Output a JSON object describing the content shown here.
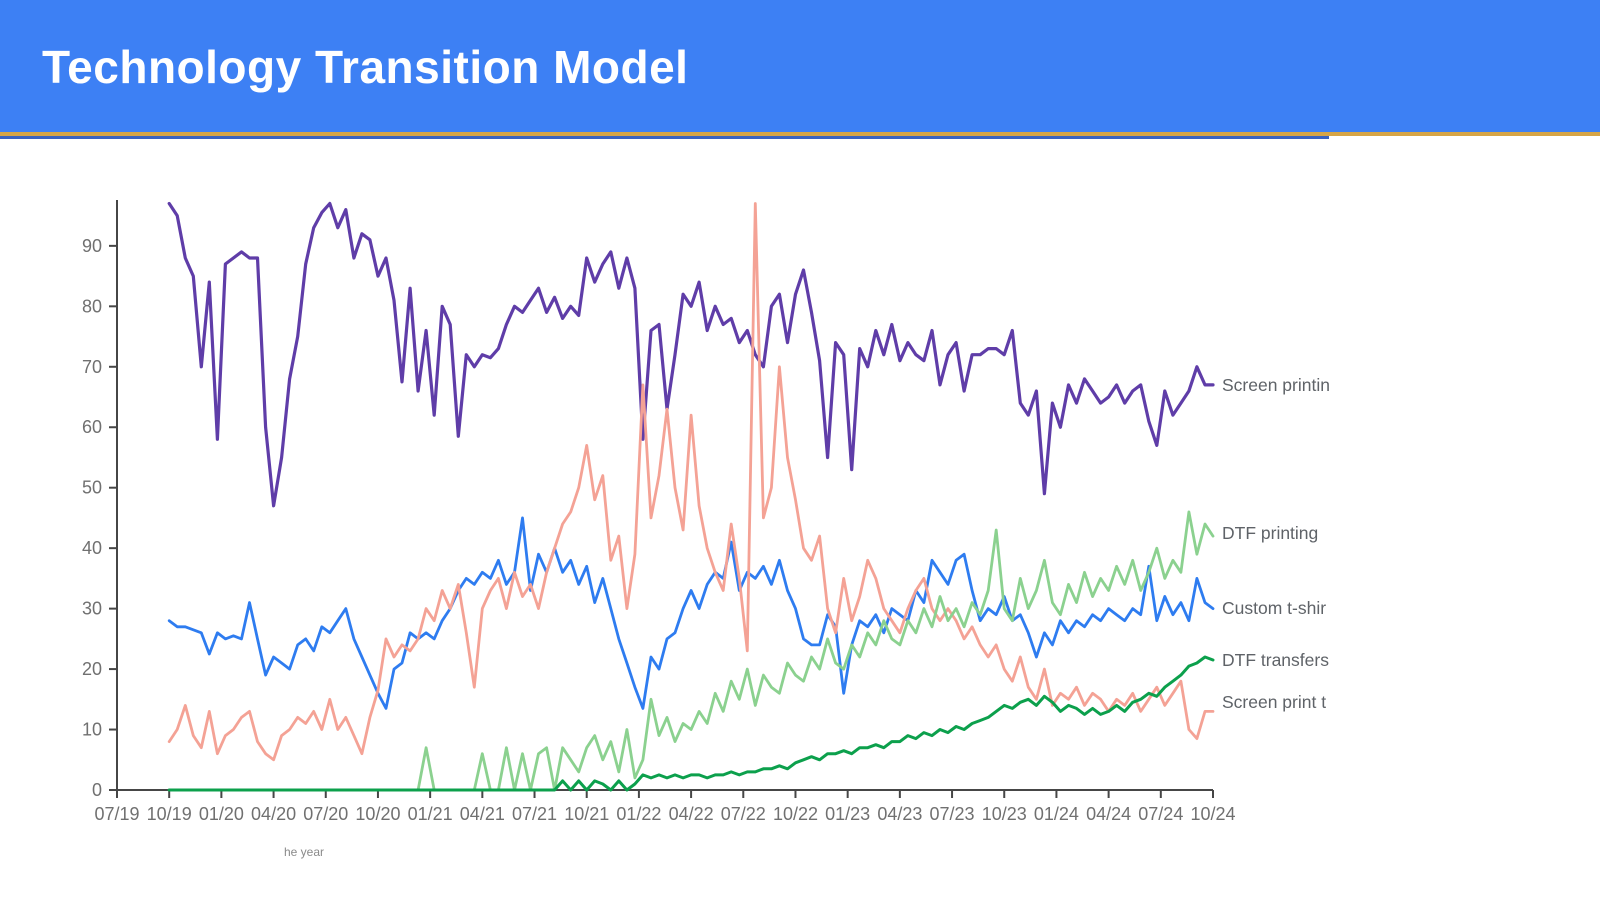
{
  "header": {
    "title": "Technology Transition Model",
    "bar_color": "#3d80f4",
    "gold_rule_color": "#d6a546",
    "navy_rule_color": "#3a63c0"
  },
  "caption_fragment": "he year",
  "chart_data": {
    "type": "line",
    "title": "",
    "xlabel": "",
    "ylabel": "",
    "grid": false,
    "legend_position": "right-of-line-ends",
    "ylim": [
      0,
      100
    ],
    "y_ticks": [
      0,
      10,
      20,
      30,
      40,
      50,
      60,
      70,
      80,
      90
    ],
    "x_tick_labels": [
      "07/19",
      "10/19",
      "01/20",
      "04/20",
      "07/20",
      "10/20",
      "01/21",
      "04/21",
      "07/21",
      "10/21",
      "01/22",
      "04/22",
      "07/22",
      "10/22",
      "01/23",
      "04/23",
      "07/23",
      "10/23",
      "01/24",
      "04/24",
      "07/24",
      "10/24"
    ],
    "data_start_tick": "10/19",
    "data_end_tick": "10/24",
    "axis_color": "#464646",
    "tick_label_color": "#707070",
    "legend_text_color": "#5f6368",
    "series": [
      {
        "name": "Screen printin",
        "color": "#5f3da8",
        "values": [
          97,
          95,
          88,
          85,
          70,
          84,
          58,
          87,
          88,
          89,
          88,
          88,
          60,
          47,
          55,
          68,
          75,
          87,
          93,
          95.5,
          97,
          93,
          96,
          88,
          92,
          91,
          85,
          88,
          81,
          67.5,
          83,
          66,
          76,
          62,
          80,
          77,
          58.5,
          72,
          70,
          72,
          71.5,
          73,
          77,
          80,
          79,
          81,
          83,
          79,
          81.5,
          78,
          80,
          78.5,
          88,
          84,
          87,
          89,
          83,
          88,
          83,
          58,
          76,
          77,
          63,
          72,
          82,
          80,
          84,
          76,
          80,
          77,
          78,
          74,
          76,
          72,
          70,
          80,
          82,
          74,
          82,
          86,
          79,
          71,
          55,
          74,
          72,
          53,
          73,
          70,
          76,
          72,
          77,
          71,
          74,
          72,
          71,
          76,
          67,
          72,
          74,
          66,
          72,
          72,
          73,
          73,
          72,
          76,
          64,
          62,
          66,
          49,
          64,
          60,
          67,
          64,
          68,
          66,
          64,
          65,
          67,
          64,
          66,
          67,
          61,
          57,
          66,
          62,
          64,
          66,
          70,
          67,
          67
        ]
      },
      {
        "name": "Custom t-shir",
        "color": "#2e7cf0",
        "values": [
          28,
          27,
          27,
          26.5,
          26,
          22.5,
          26,
          25,
          25.5,
          25,
          31,
          25,
          19,
          22,
          21,
          20,
          24,
          25,
          23,
          27,
          26,
          28,
          30,
          25,
          22,
          19,
          16,
          13.5,
          20,
          21,
          26,
          25,
          26,
          25,
          28,
          30,
          33,
          35,
          34,
          36,
          35,
          38,
          34,
          36,
          45,
          33,
          39,
          36,
          40,
          36,
          38,
          34,
          37,
          31,
          35,
          30,
          25,
          21,
          17,
          13.5,
          22,
          20,
          25,
          26,
          30,
          33,
          30,
          34,
          36,
          35,
          41,
          33,
          36,
          35,
          37,
          34,
          38,
          33,
          30,
          25,
          24,
          24,
          29,
          27,
          16,
          24,
          28,
          27,
          29,
          26,
          30,
          29,
          28,
          33,
          31,
          38,
          36,
          34,
          38,
          39,
          33,
          28,
          30,
          29,
          32,
          28,
          29,
          26,
          22,
          26,
          24,
          28,
          26,
          28,
          27,
          29,
          28,
          30,
          29,
          28,
          30,
          29,
          37,
          28,
          32,
          29,
          31,
          28,
          35,
          31,
          30
        ]
      },
      {
        "name": "Screen print t",
        "color": "#f4a295",
        "values": [
          8,
          10,
          14,
          9,
          7,
          13,
          6,
          9,
          10,
          12,
          13,
          8,
          6,
          5,
          9,
          10,
          12,
          11,
          13,
          10,
          15,
          10,
          12,
          9,
          6,
          12,
          16.5,
          25,
          22,
          24,
          23,
          25,
          30,
          28,
          33,
          30,
          34,
          26,
          17,
          30,
          33,
          35,
          30,
          36,
          32,
          34,
          30,
          36,
          40,
          44,
          46,
          50,
          57,
          48,
          52,
          38,
          42,
          30,
          39,
          67,
          45,
          52,
          63,
          50,
          43,
          62,
          47,
          40,
          36,
          33,
          44,
          35,
          23,
          97,
          45,
          50,
          70,
          55,
          48,
          40,
          38,
          42,
          30,
          26,
          35,
          28,
          32,
          38,
          35,
          30,
          28,
          26,
          30,
          33,
          35,
          30,
          28,
          30,
          28,
          25,
          27,
          24,
          22,
          24,
          20,
          18,
          22,
          17,
          15,
          20,
          14,
          16,
          15,
          17,
          14,
          16,
          15,
          13,
          15,
          14,
          16,
          13,
          15,
          17,
          14,
          16,
          18,
          10,
          8.5,
          13,
          13
        ]
      },
      {
        "name": "DTF printing",
        "color": "#8bd18f",
        "values": [
          0,
          0,
          0,
          0,
          0,
          0,
          0,
          0,
          0,
          0,
          0,
          0,
          0,
          0,
          0,
          0,
          0,
          0,
          0,
          0,
          0,
          0,
          0,
          0,
          0,
          0,
          0,
          0,
          0,
          0,
          0,
          0,
          7,
          0,
          0,
          0,
          0,
          0,
          0,
          6,
          0,
          0,
          7,
          0,
          6,
          0,
          6,
          7,
          0,
          7,
          5,
          3,
          7,
          9,
          5,
          8,
          3,
          10,
          2,
          5,
          15,
          9,
          12,
          8,
          11,
          10,
          13,
          11,
          16,
          13,
          18,
          15,
          20,
          14,
          19,
          17,
          16,
          21,
          19,
          18,
          22,
          20,
          25,
          21,
          20,
          24,
          22,
          26,
          24,
          28,
          25,
          24,
          28,
          26,
          30,
          27,
          32,
          28,
          30,
          27,
          31,
          29,
          33,
          43,
          30,
          28,
          35,
          30,
          33,
          38,
          31,
          29,
          34,
          31,
          36,
          32,
          35,
          33,
          37,
          34,
          38,
          33,
          36,
          40,
          35,
          38,
          36,
          46,
          39,
          44,
          42
        ]
      },
      {
        "name": "DTF transfers",
        "color": "#0ca04c",
        "values": [
          0,
          0,
          0,
          0,
          0,
          0,
          0,
          0,
          0,
          0,
          0,
          0,
          0,
          0,
          0,
          0,
          0,
          0,
          0,
          0,
          0,
          0,
          0,
          0,
          0,
          0,
          0,
          0,
          0,
          0,
          0,
          0,
          0,
          0,
          0,
          0,
          0,
          0,
          0,
          0,
          0,
          0,
          0,
          0,
          0,
          0,
          0,
          0,
          0,
          1.5,
          0,
          1.5,
          0,
          1.5,
          1,
          0,
          1.5,
          0,
          1,
          2.5,
          2,
          2.5,
          2,
          2.5,
          2,
          2.5,
          2.5,
          2,
          2.5,
          2.5,
          3,
          2.5,
          3,
          3,
          3.5,
          3.5,
          4,
          3.5,
          4.5,
          5,
          5.5,
          5,
          6,
          6,
          6.5,
          6,
          7,
          7,
          7.5,
          7,
          8,
          8,
          9,
          8.5,
          9.5,
          9,
          10,
          9.5,
          10.5,
          10,
          11,
          11.5,
          12,
          13,
          14,
          13.5,
          14.5,
          15,
          14,
          15.5,
          14.5,
          13,
          14,
          13.5,
          12.5,
          13.5,
          12.5,
          13,
          14,
          13,
          14.5,
          15,
          16,
          15.5,
          17,
          18,
          19,
          20.5,
          21,
          22,
          21.5
        ]
      }
    ]
  }
}
